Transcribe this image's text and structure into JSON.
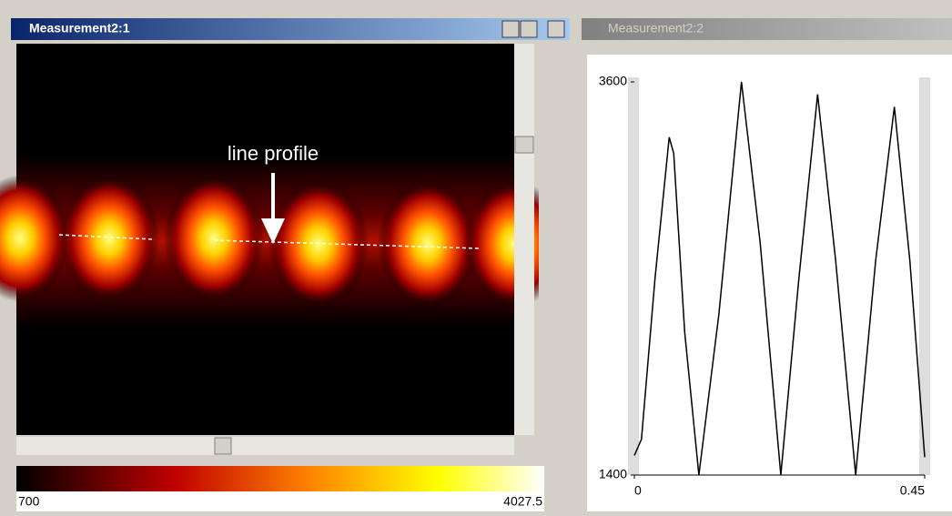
{
  "windows": [
    {
      "title": "Measurement2:1",
      "annotation": "line profile",
      "colorbar": {
        "min": 700,
        "max": 4027.5
      }
    },
    {
      "title": "Measurement2:2"
    }
  ],
  "chart_data": {
    "type": "line",
    "x": [
      0,
      0.011,
      0.032,
      0.054,
      0.061,
      0.078,
      0.1,
      0.131,
      0.166,
      0.195,
      0.227,
      0.255,
      0.284,
      0.312,
      0.343,
      0.374,
      0.403,
      0.427,
      0.45
    ],
    "series": [
      {
        "color": "#000000",
        "values": [
          1510,
          1600,
          2500,
          3290,
          3200,
          2200,
          1400,
          2300,
          3600,
          2700,
          1400,
          2500,
          3530,
          2600,
          1400,
          2600,
          3460,
          2600,
          1500
        ]
      }
    ],
    "xlim": [
      0,
      0.45
    ],
    "ylim": [
      1400,
      3600
    ],
    "xticks": [
      0,
      0.45
    ],
    "yticks": [
      1400,
      3600
    ]
  }
}
